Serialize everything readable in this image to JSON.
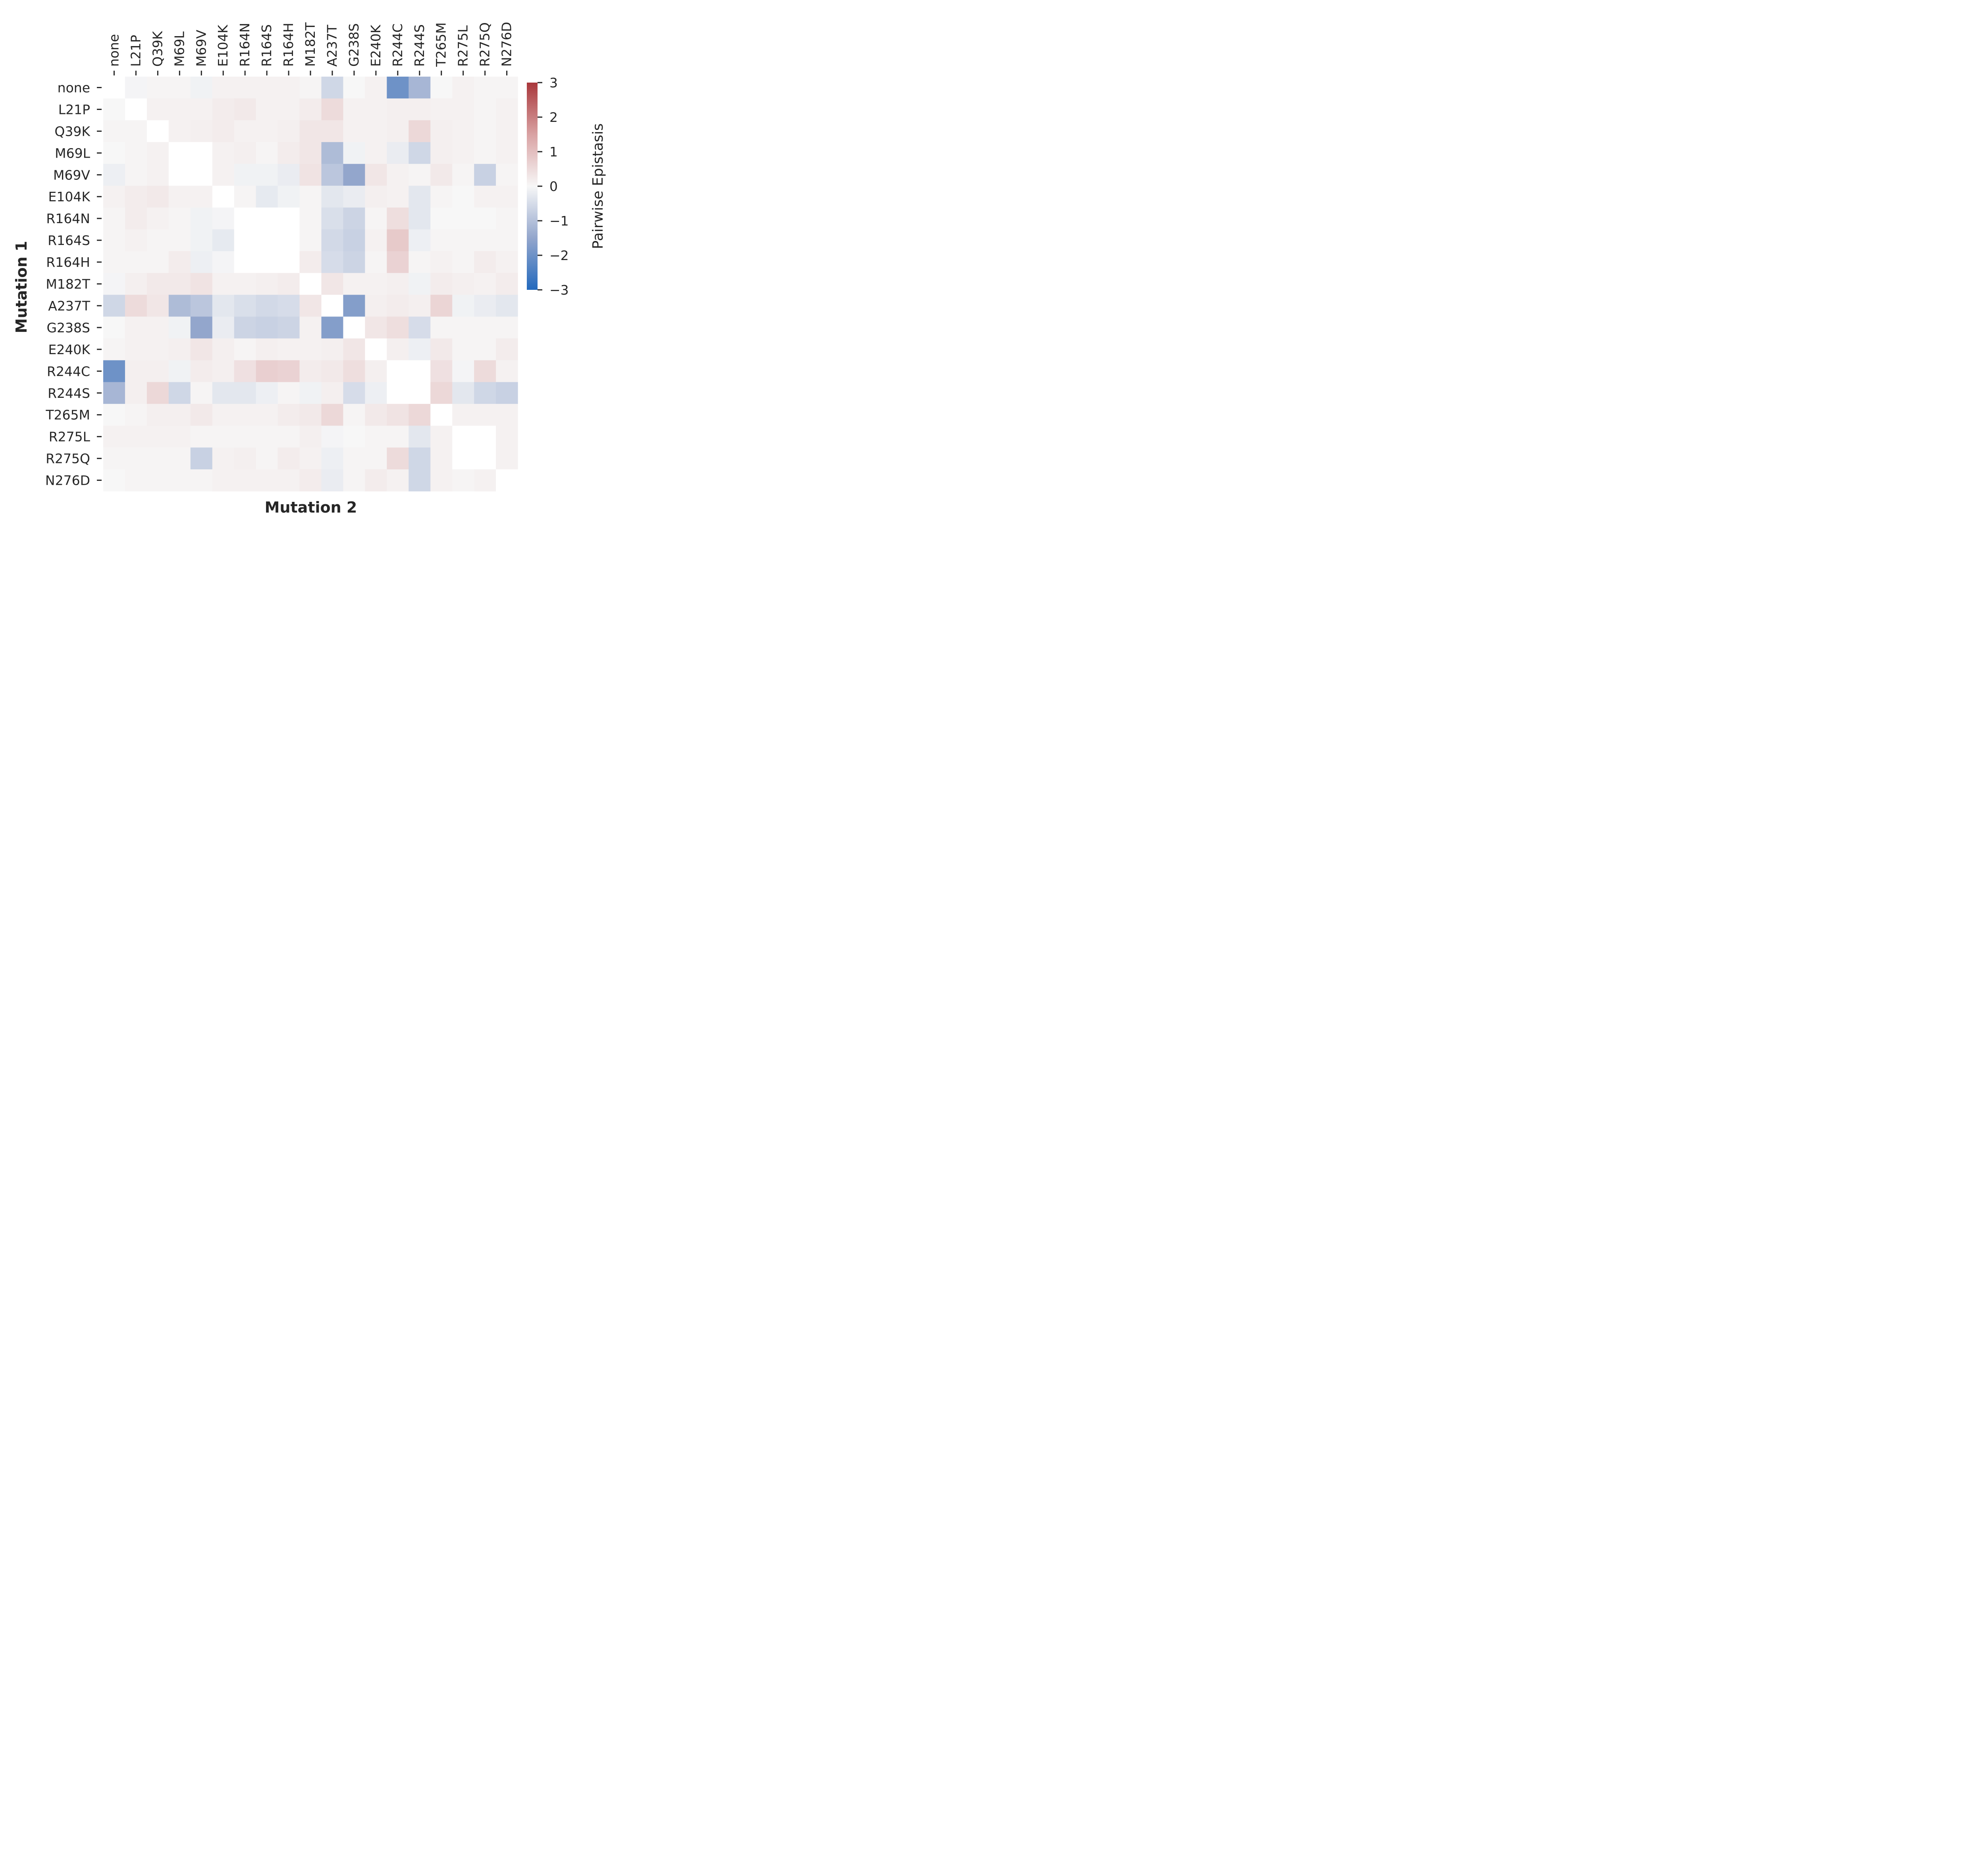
{
  "chart_data": {
    "type": "heatmap",
    "xlabel": "Mutation 2",
    "ylabel": "Mutation 1",
    "x_categories": [
      "none",
      "L21P",
      "Q39K",
      "M69L",
      "M69V",
      "E104K",
      "R164N",
      "R164S",
      "R164H",
      "M182T",
      "A237T",
      "G238S",
      "E240K",
      "R244C",
      "R244S",
      "T265M",
      "R275L",
      "R275Q",
      "N276D"
    ],
    "y_categories": [
      "none",
      "L21P",
      "Q39K",
      "M69L",
      "M69V",
      "E104K",
      "R164N",
      "R164S",
      "R164H",
      "M182T",
      "A237T",
      "G238S",
      "E240K",
      "R244C",
      "R244S",
      "T265M",
      "R275L",
      "R275Q",
      "N276D"
    ],
    "values": [
      [
        null,
        -0.05,
        0.05,
        0.05,
        -0.1,
        0.1,
        0.1,
        0.1,
        0.1,
        0.05,
        -0.6,
        0,
        0.1,
        -2.0,
        -1.2,
        0,
        0.1,
        0.05,
        0.05
      ],
      [
        0,
        null,
        0.1,
        0.1,
        0.1,
        0.2,
        0.25,
        0.1,
        0.1,
        0.2,
        0.5,
        0.1,
        0.1,
        0.15,
        0.15,
        0.1,
        0.1,
        0.05,
        0.1
      ],
      [
        0.05,
        0.05,
        null,
        0.1,
        0.15,
        0.2,
        0.1,
        0.1,
        0.15,
        0.3,
        0.3,
        0.1,
        0.1,
        0.15,
        0.55,
        0.15,
        0.1,
        0.05,
        0.1
      ],
      [
        0,
        0.05,
        0.1,
        null,
        null,
        0.1,
        0.15,
        0.05,
        0.2,
        0.3,
        -1.1,
        -0.1,
        0.1,
        -0.2,
        -0.6,
        0.15,
        0.1,
        0.05,
        0.1
      ],
      [
        -0.15,
        0.05,
        0.1,
        null,
        null,
        0.1,
        -0.1,
        -0.1,
        -0.2,
        0.35,
        -0.9,
        -1.5,
        0.3,
        0.1,
        0.05,
        0.25,
        0.05,
        -0.7,
        0.05
      ],
      [
        0.1,
        0.2,
        0.25,
        0.1,
        0.1,
        null,
        0.05,
        -0.25,
        -0.1,
        0.05,
        -0.3,
        -0.2,
        0.15,
        0.1,
        -0.3,
        0.05,
        0,
        0.1,
        0.1
      ],
      [
        0.05,
        0.2,
        0.1,
        0.05,
        -0.1,
        -0.05,
        null,
        null,
        null,
        0.05,
        -0.45,
        -0.65,
        0.05,
        0.45,
        -0.3,
        0,
        0,
        0,
        0.05
      ],
      [
        0.05,
        0.1,
        0.05,
        0.05,
        -0.1,
        -0.25,
        null,
        null,
        null,
        0.05,
        -0.55,
        -0.7,
        0.1,
        0.8,
        -0.15,
        0.05,
        0.05,
        0.05,
        0.05
      ],
      [
        0.05,
        0.05,
        0.05,
        0.2,
        -0.15,
        -0.05,
        null,
        null,
        null,
        0.2,
        -0.5,
        -0.65,
        0.05,
        0.65,
        0.05,
        0.1,
        0.05,
        0.2,
        0.1
      ],
      [
        -0.05,
        0.15,
        0.25,
        0.25,
        0.35,
        0.1,
        0.1,
        0.15,
        0.2,
        null,
        0.3,
        0.1,
        0.1,
        0.15,
        -0.1,
        0.2,
        0.15,
        0.1,
        0.2
      ],
      [
        -0.6,
        0.5,
        0.3,
        -1.1,
        -0.9,
        -0.3,
        -0.45,
        -0.55,
        -0.5,
        0.3,
        null,
        -1.7,
        0.15,
        0.2,
        0.15,
        0.6,
        -0.1,
        -0.2,
        -0.3
      ],
      [
        0,
        0.1,
        0.1,
        -0.1,
        -1.5,
        -0.2,
        -0.65,
        -0.7,
        -0.65,
        0.1,
        -1.7,
        null,
        0.3,
        0.45,
        -0.5,
        0.05,
        0.05,
        0.05,
        0.05
      ],
      [
        0.05,
        0.1,
        0.1,
        0.15,
        0.3,
        0.15,
        0.05,
        0.15,
        0.1,
        0.1,
        0.15,
        0.3,
        null,
        0.15,
        -0.15,
        0.25,
        0.05,
        0.05,
        0.2
      ],
      [
        -2.0,
        0.15,
        0.15,
        -0.1,
        0.2,
        0.15,
        0.4,
        0.7,
        0.65,
        0.2,
        0.25,
        0.45,
        0.15,
        null,
        null,
        0.4,
        -0.05,
        0.5,
        0.1
      ],
      [
        -1.2,
        0.15,
        0.55,
        -0.6,
        0.05,
        -0.3,
        -0.3,
        -0.15,
        0.05,
        -0.1,
        0.15,
        -0.5,
        -0.15,
        null,
        null,
        0.55,
        -0.3,
        -0.6,
        -0.7
      ],
      [
        0,
        0.05,
        0.15,
        0.15,
        0.25,
        0.1,
        0.1,
        0.1,
        0.2,
        0.25,
        0.55,
        0.05,
        0.25,
        0.35,
        0.55,
        null,
        0.1,
        0.1,
        0.1
      ],
      [
        0.1,
        0.1,
        0.1,
        0.1,
        0.05,
        0.05,
        0.05,
        0.05,
        0.05,
        0.15,
        -0.05,
        0,
        0.05,
        0.05,
        -0.3,
        0.1,
        null,
        null,
        0.1
      ],
      [
        0.05,
        0.05,
        0.05,
        0.05,
        -0.7,
        0.1,
        0.15,
        0.05,
        0.2,
        0.1,
        -0.15,
        0.05,
        0.05,
        0.5,
        -0.6,
        0.1,
        null,
        null,
        0.1
      ],
      [
        0,
        0.05,
        0.05,
        0.05,
        0.05,
        0.1,
        0.1,
        0.1,
        0.1,
        0.2,
        -0.2,
        0.05,
        0.2,
        0.1,
        -0.6,
        0.1,
        0.05,
        0.1,
        null
      ]
    ],
    "colorbar": {
      "label": "Pairwise Epistasis",
      "range": [
        -3,
        3
      ],
      "ticks": [
        "3",
        "2",
        "1",
        "0",
        "−1",
        "−2",
        "−3"
      ],
      "colormap": "vlag",
      "low_color": "#2369BD",
      "mid_color": "#ffffff",
      "high_color": "#A9373B"
    },
    "grid": false,
    "legend": "colorbar-right"
  }
}
